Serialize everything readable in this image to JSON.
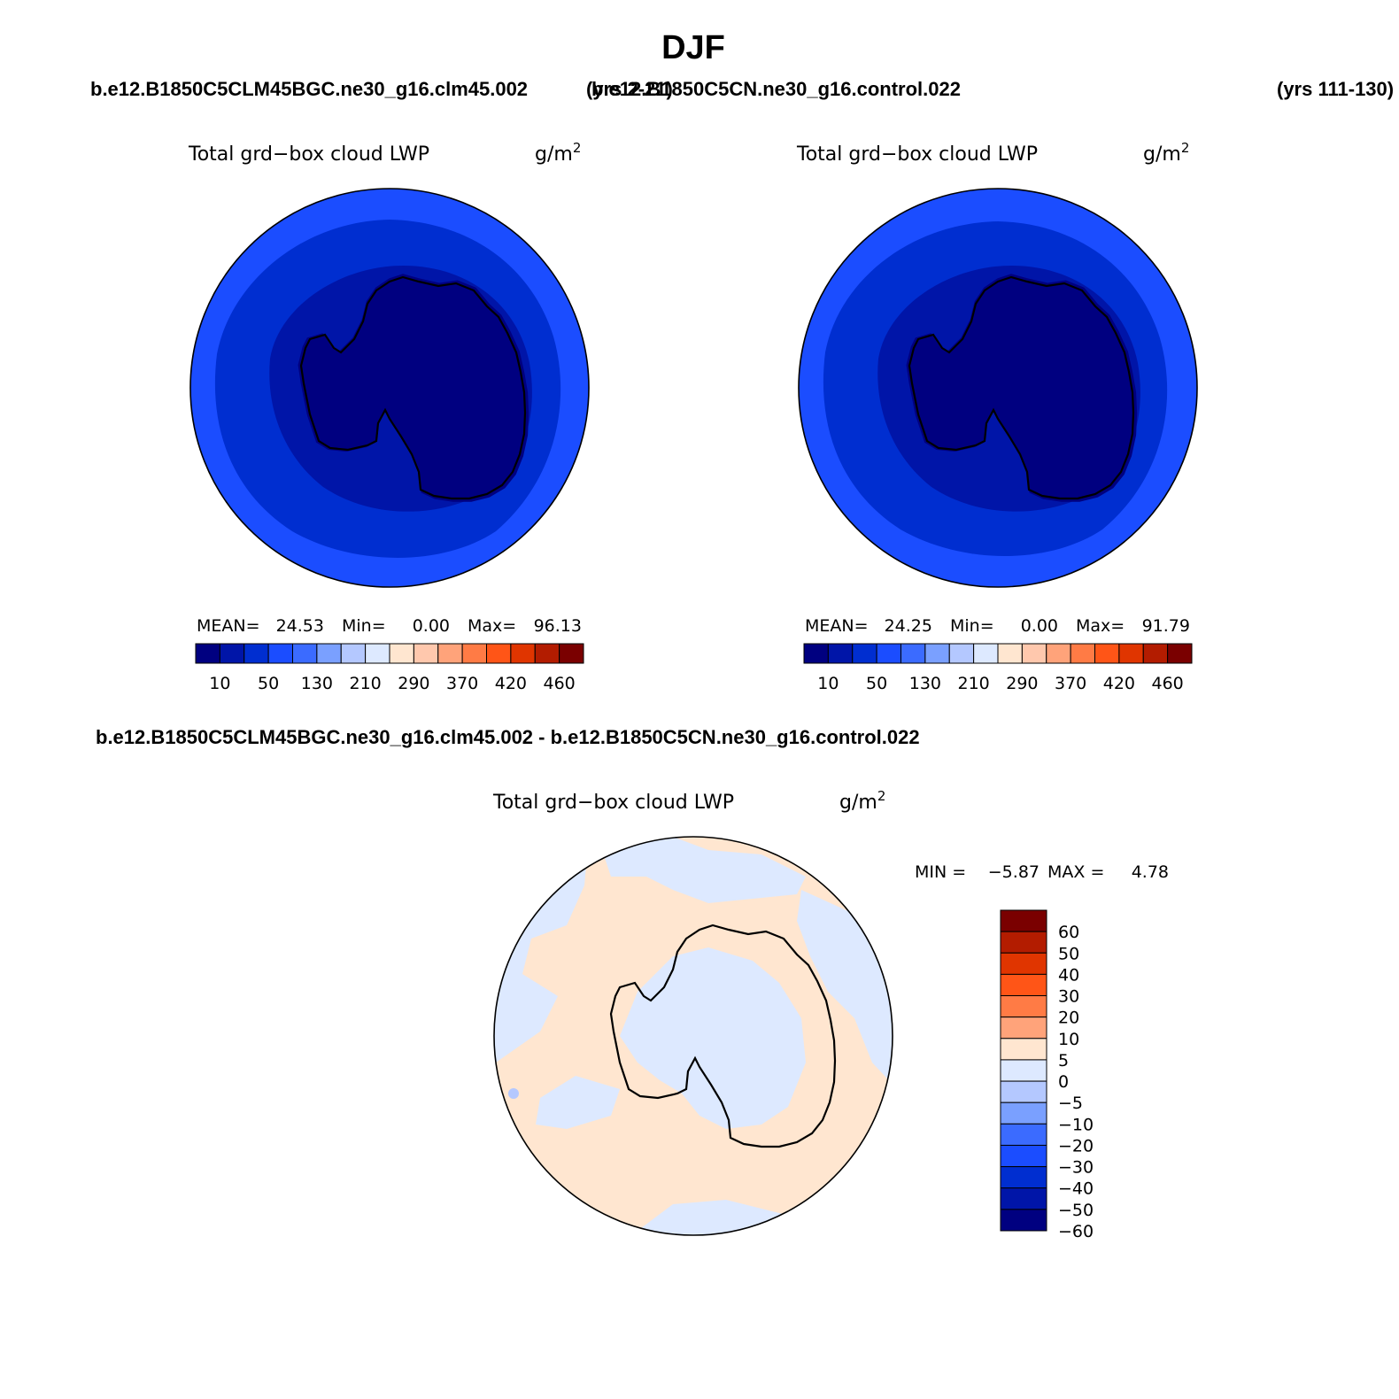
{
  "season": "DJF",
  "case1": {
    "name": "b.e12.B1850C5CLM45BGC.ne30_g16.clm45.002",
    "years": "(yrs 2-21)"
  },
  "case2": {
    "name": "b.e12.B1850C5CN.ne30_g16.control.022",
    "years": "(yrs 111-130)"
  },
  "diff_title": "b.e12.B1850C5CLM45BGC.ne30_g16.clm45.002 - b.e12.B1850C5CN.ne30_g16.control.022",
  "variable": "Total grd−box cloud LWP",
  "units": "g/m",
  "units_exp": "2",
  "panel1": {
    "stats": {
      "mean_label": "MEAN=",
      "mean": "24.53",
      "min_label": "Min=",
      "min": "0.00",
      "max_label": "Max=",
      "max": "96.13"
    }
  },
  "panel2": {
    "stats": {
      "mean_label": "MEAN=",
      "mean": "24.25",
      "min_label": "Min=",
      "min": "0.00",
      "max_label": "Max=",
      "max": "91.79"
    }
  },
  "panel3": {
    "stats": {
      "min_label": "MIN =",
      "min": "−5.87",
      "max_label": "MAX =",
      "max": "4.78"
    }
  },
  "abs_colorbar": {
    "colors": [
      "#000080",
      "#0015a8",
      "#002ed0",
      "#1b4dff",
      "#3b6bff",
      "#7aa0ff",
      "#b4c8ff",
      "#dde9ff",
      "#ffe6d0",
      "#ffc8ad",
      "#ffa37a",
      "#ff7b45",
      "#ff5517",
      "#e03500",
      "#b31c00",
      "#7a0000"
    ],
    "tick_labels": [
      "10",
      "50",
      "130",
      "210",
      "290",
      "370",
      "420",
      "460"
    ]
  },
  "diff_colorbar": {
    "colors": [
      "#7a0000",
      "#b31c00",
      "#e03500",
      "#ff5517",
      "#ff7b45",
      "#ffa37a",
      "#ffe6d0",
      "#dde9ff",
      "#b4c8ff",
      "#7aa0ff",
      "#3b6bff",
      "#1b4dff",
      "#002ed0",
      "#0015a8",
      "#000080"
    ],
    "tick_labels": [
      "60",
      "50",
      "40",
      "30",
      "20",
      "10",
      "5",
      "0",
      "−5",
      "−10",
      "−20",
      "−30",
      "−40",
      "−50",
      "−60"
    ]
  },
  "field_colors": {
    "dark": "#000080",
    "mid": "#0015a8",
    "ring": "#002ed0",
    "outer": "#1b4dff",
    "diff_pos": "#ffe6d0",
    "diff_neg": "#dde9ff",
    "diff_neg2": "#b4c8ff"
  },
  "icons": [
    "antarctica-coastline"
  ]
}
